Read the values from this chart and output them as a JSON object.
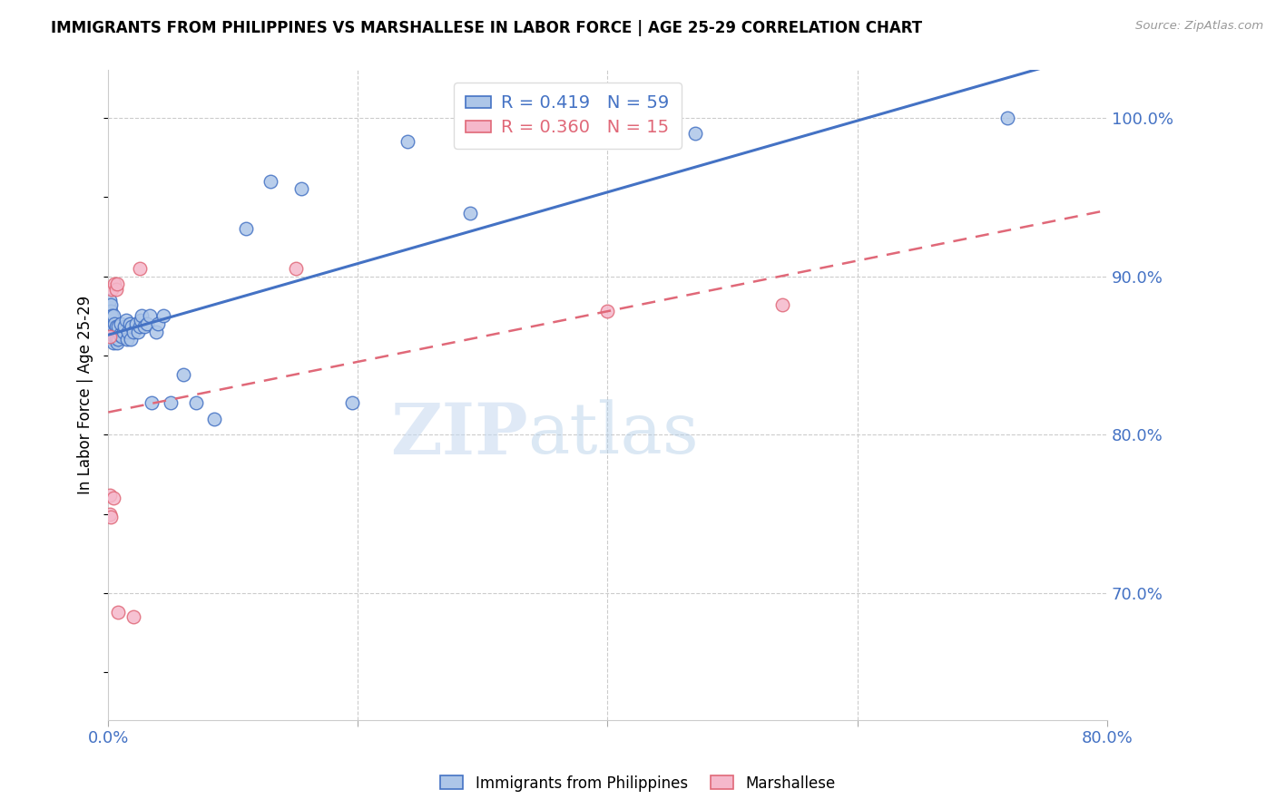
{
  "title": "IMMIGRANTS FROM PHILIPPINES VS MARSHALLESE IN LABOR FORCE | AGE 25-29 CORRELATION CHART",
  "source": "Source: ZipAtlas.com",
  "ylabel": "In Labor Force | Age 25-29",
  "xlim": [
    0.0,
    0.8
  ],
  "ylim": [
    0.62,
    1.03
  ],
  "yticks_right": [
    0.7,
    0.8,
    0.9,
    1.0
  ],
  "ytick_labels_right": [
    "70.0%",
    "80.0%",
    "90.0%",
    "100.0%"
  ],
  "grid_color": "#cccccc",
  "background_color": "#ffffff",
  "philippines_color": "#adc6e8",
  "marshallese_color": "#f5b8cb",
  "philippines_line_color": "#4472c4",
  "marshallese_line_color": "#e06878",
  "philippines_R": 0.419,
  "philippines_N": 59,
  "marshallese_R": 0.36,
  "marshallese_N": 15,
  "watermark": "ZIPatlas",
  "philippines_x": [
    0.001,
    0.001,
    0.001,
    0.001,
    0.002,
    0.002,
    0.002,
    0.002,
    0.003,
    0.003,
    0.003,
    0.003,
    0.004,
    0.004,
    0.004,
    0.005,
    0.005,
    0.006,
    0.006,
    0.007,
    0.007,
    0.008,
    0.008,
    0.009,
    0.01,
    0.011,
    0.012,
    0.013,
    0.014,
    0.015,
    0.016,
    0.017,
    0.018,
    0.019,
    0.02,
    0.022,
    0.024,
    0.025,
    0.026,
    0.027,
    0.029,
    0.031,
    0.033,
    0.035,
    0.038,
    0.04,
    0.044,
    0.05,
    0.06,
    0.07,
    0.085,
    0.11,
    0.13,
    0.155,
    0.195,
    0.24,
    0.29,
    0.47,
    0.72
  ],
  "philippines_y": [
    0.862,
    0.875,
    0.88,
    0.885,
    0.87,
    0.875,
    0.878,
    0.882,
    0.86,
    0.865,
    0.87,
    0.875,
    0.858,
    0.868,
    0.875,
    0.862,
    0.87,
    0.86,
    0.868,
    0.858,
    0.865,
    0.86,
    0.868,
    0.863,
    0.87,
    0.862,
    0.865,
    0.868,
    0.872,
    0.86,
    0.865,
    0.87,
    0.86,
    0.868,
    0.865,
    0.87,
    0.865,
    0.868,
    0.872,
    0.875,
    0.868,
    0.87,
    0.875,
    0.82,
    0.865,
    0.87,
    0.875,
    0.82,
    0.838,
    0.82,
    0.81,
    0.93,
    0.96,
    0.955,
    0.82,
    0.985,
    0.94,
    0.99,
    1.0
  ],
  "marshallese_x": [
    0.001,
    0.001,
    0.001,
    0.002,
    0.003,
    0.004,
    0.005,
    0.006,
    0.007,
    0.008,
    0.02,
    0.025,
    0.15,
    0.4,
    0.54
  ],
  "marshallese_y": [
    0.862,
    0.762,
    0.75,
    0.748,
    0.892,
    0.76,
    0.895,
    0.892,
    0.895,
    0.688,
    0.685,
    0.905,
    0.905,
    0.878,
    0.882
  ]
}
